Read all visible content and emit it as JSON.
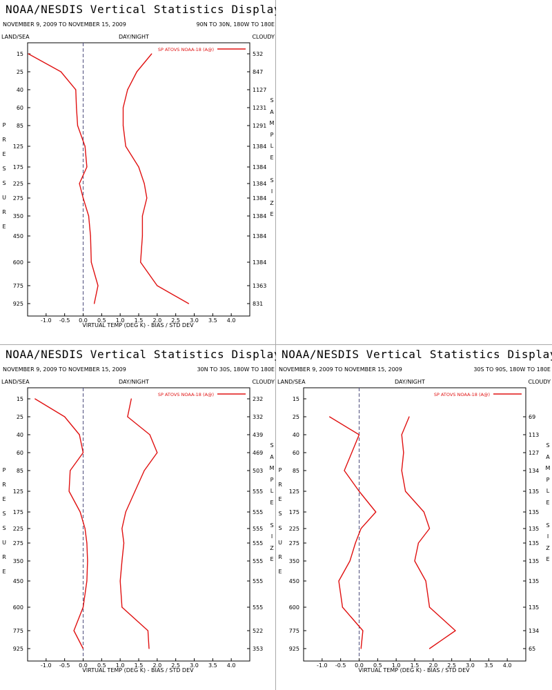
{
  "common": {
    "app_title": "NOAA/NESDIS Vertical Statistics Display",
    "date_range": "NOVEMBER 9, 2009 TO NOVEMBER 15, 2009",
    "surface_label": "LAND/SEA",
    "time_label": "DAY/NIGHT",
    "cloud_label": "CLOUDY",
    "legend_label": "SP ATOVS NOAA-18 (A@)",
    "y_axis_letters": [
      "P",
      "R",
      "E",
      "S",
      "S",
      "U",
      "R",
      "E"
    ],
    "right_axis_letters": [
      "S",
      "A",
      "M",
      "P",
      "L",
      "E",
      " ",
      "S",
      "I",
      "Z",
      "E"
    ],
    "colors": {
      "series": "#e01010",
      "zero_line": "#4a4a7a",
      "frame": "#000000",
      "divider": "#a8a8a8"
    }
  },
  "chart_data": [
    {
      "type": "line",
      "region": "90N TO 30N, 180W TO 180E",
      "xlabel": "VIRTUAL TEMP (DEG K) - BIAS / STD DEV",
      "ylabel": "PRESSURE",
      "y2label": "SAMPLE SIZE",
      "xlim": [
        -1.5,
        4.5
      ],
      "x_ticks": [
        -1.0,
        -0.5,
        0.0,
        0.5,
        1.0,
        1.5,
        2.0,
        2.5,
        3.0,
        3.5,
        4.0
      ],
      "x_tick_labels": [
        "-1.0",
        "-0.5",
        "0.0",
        "0.5",
        "1.0",
        "1.5",
        "2.0",
        "2.5",
        "3.0",
        "3.5",
        "4.0"
      ],
      "pressure_levels": [
        "15",
        "25",
        "40",
        "60",
        "85",
        "125",
        "175",
        "225",
        "275",
        "350",
        "450",
        "600",
        "775",
        "925"
      ],
      "sample_size": [
        "532",
        "847",
        "1127",
        "1231",
        "1291",
        "1384",
        "1384",
        "1384",
        "1384",
        "1384",
        "1384",
        "1384",
        "1363",
        "831"
      ],
      "series": [
        {
          "name": "bias",
          "levels": [
            "15",
            "25",
            "40",
            "60",
            "85",
            "125",
            "175",
            "225",
            "275",
            "350",
            "450",
            "600",
            "775",
            "925"
          ],
          "values": [
            -1.48,
            -0.6,
            -0.2,
            -0.18,
            -0.15,
            0.05,
            0.1,
            -0.1,
            0.0,
            0.15,
            0.2,
            0.22,
            0.4,
            0.3
          ]
        },
        {
          "name": "std_dev",
          "levels": [
            "15",
            "25",
            "40",
            "60",
            "85",
            "125",
            "175",
            "225",
            "275",
            "350",
            "450",
            "600",
            "775",
            "925"
          ],
          "values": [
            1.85,
            1.45,
            1.2,
            1.08,
            1.08,
            1.15,
            1.5,
            1.65,
            1.72,
            1.6,
            1.6,
            1.55,
            2.0,
            2.85
          ]
        }
      ]
    },
    {
      "type": "line",
      "region": "30N TO 30S, 180W TO 180E",
      "xlabel": "VIRTUAL TEMP (DEG K) - BIAS / STD DEV",
      "ylabel": "PRESSURE",
      "y2label": "SAMPLE SIZE",
      "xlim": [
        -1.5,
        4.5
      ],
      "x_ticks": [
        -1.0,
        -0.5,
        0.0,
        0.5,
        1.0,
        1.5,
        2.0,
        2.5,
        3.0,
        3.5,
        4.0
      ],
      "x_tick_labels": [
        "-1.0",
        "-0.5",
        "0.0",
        "0.5",
        "1.0",
        "1.5",
        "2.0",
        "2.5",
        "3.0",
        "3.5",
        "4.0"
      ],
      "pressure_levels": [
        "15",
        "25",
        "40",
        "60",
        "85",
        "125",
        "175",
        "225",
        "275",
        "350",
        "450",
        "600",
        "775",
        "925"
      ],
      "sample_size": [
        "232",
        "332",
        "439",
        "469",
        "503",
        "555",
        "555",
        "555",
        "555",
        "555",
        "555",
        "555",
        "522",
        "353"
      ],
      "series": [
        {
          "name": "bias",
          "levels": [
            "15",
            "25",
            "40",
            "60",
            "85",
            "125",
            "175",
            "225",
            "275",
            "350",
            "450",
            "600",
            "775",
            "925"
          ],
          "values": [
            -1.3,
            -0.5,
            -0.1,
            0.0,
            -0.35,
            -0.38,
            -0.08,
            0.05,
            0.1,
            0.12,
            0.1,
            0.0,
            -0.25,
            0.0
          ]
        },
        {
          "name": "std_dev",
          "levels": [
            "15",
            "25",
            "40",
            "60",
            "85",
            "125",
            "175",
            "225",
            "275",
            "350",
            "450",
            "600",
            "775",
            "925"
          ],
          "values": [
            1.3,
            1.2,
            1.8,
            2.0,
            1.65,
            1.4,
            1.15,
            1.05,
            1.1,
            1.05,
            1.0,
            1.05,
            1.75,
            1.78
          ]
        }
      ]
    },
    {
      "type": "line",
      "region": "30S TO 90S, 180W TO 180E",
      "xlabel": "VIRTUAL TEMP (DEG K) - BIAS / STD DEV",
      "ylabel": "PRESSURE",
      "y2label": "SAMPLE SIZE",
      "xlim": [
        -1.5,
        4.5
      ],
      "x_ticks": [
        -1.0,
        -0.5,
        0.0,
        0.5,
        1.0,
        1.5,
        2.0,
        2.5,
        3.0,
        3.5,
        4.0
      ],
      "x_tick_labels": [
        "-1.0",
        "-0.5",
        "0.0",
        "0.5",
        "1.0",
        "1.5",
        "2.0",
        "2.5",
        "3.0",
        "3.5",
        "4.0"
      ],
      "pressure_levels": [
        "15",
        "25",
        "40",
        "60",
        "85",
        "125",
        "175",
        "225",
        "275",
        "350",
        "450",
        "600",
        "775",
        "925"
      ],
      "sample_size": [
        "",
        "69",
        "113",
        "127",
        "134",
        "135",
        "135",
        "135",
        "135",
        "135",
        "135",
        "135",
        "134",
        "65"
      ],
      "series": [
        {
          "name": "bias",
          "levels": [
            "25",
            "40",
            "60",
            "85",
            "125",
            "175",
            "225",
            "275",
            "350",
            "450",
            "600",
            "775",
            "925"
          ],
          "values": [
            -0.8,
            0.0,
            -0.2,
            -0.4,
            0.0,
            0.45,
            0.05,
            -0.1,
            -0.25,
            -0.55,
            -0.45,
            0.1,
            0.05
          ]
        },
        {
          "name": "std_dev",
          "levels": [
            "25",
            "40",
            "60",
            "85",
            "125",
            "175",
            "225",
            "275",
            "350",
            "450",
            "600",
            "775",
            "925"
          ],
          "values": [
            1.35,
            1.15,
            1.2,
            1.15,
            1.25,
            1.75,
            1.9,
            1.6,
            1.5,
            1.8,
            1.9,
            2.6,
            1.9
          ]
        }
      ]
    }
  ]
}
